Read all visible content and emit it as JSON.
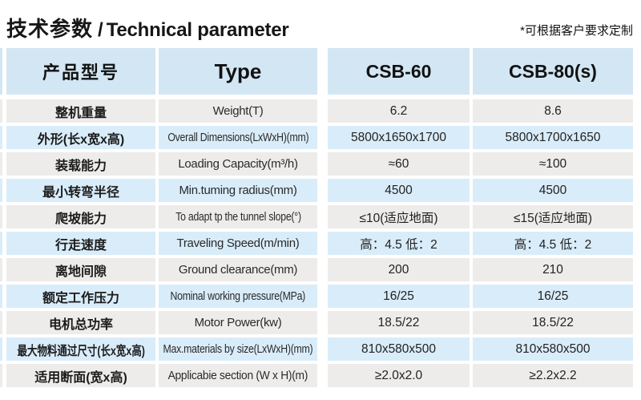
{
  "header": {
    "title_zh": "技术参数",
    "title_sep": "/",
    "title_en": "Technical parameter",
    "note": "*可根据客户要求定制"
  },
  "table": {
    "header": {
      "zh": "产品型号",
      "type": "Type",
      "csb60": "CSB-60",
      "csb80": "CSB-80(s)"
    },
    "rows": [
      {
        "zh": "整机重量",
        "en": "Weight(T)",
        "v1": "6.2",
        "v2": "8.6"
      },
      {
        "zh": "外形(长x宽x高)",
        "en": "Overall Dimensions(LxWxH)(mm)",
        "v1": "5800x1650x1700",
        "v2": "5800x1700x1650"
      },
      {
        "zh": "装载能力",
        "en": "Loading Capacity(m³/h)",
        "v1": "≈60",
        "v2": "≈100"
      },
      {
        "zh": "最小转弯半径",
        "en": "Min.tuming radius(mm)",
        "v1": "4500",
        "v2": "4500"
      },
      {
        "zh": "爬坡能力",
        "en": "To adapt tp the tunnel slope(°)",
        "v1": "≤10(适应地面)",
        "v2": "≤15(适应地面)"
      },
      {
        "zh": "行走速度",
        "en": "Traveling Speed(m/min)",
        "v1": "高：4.5 低：2",
        "v2": "高：4.5 低：2"
      },
      {
        "zh": "离地间隙",
        "en": "Ground clearance(mm)",
        "v1": "200",
        "v2": "210"
      },
      {
        "zh": "额定工作压力",
        "en": "Nominal working pressure(MPa)",
        "v1": "16/25",
        "v2": "16/25"
      },
      {
        "zh": "电机总功率",
        "en": "Motor Power(kw)",
        "v1": "18.5/22",
        "v2": "18.5/22"
      },
      {
        "zh": "最大物料通过尺寸(长x宽x高)",
        "en": "Max.materials by size(LxWxH)(mm)",
        "v1": "810x580x500",
        "v2": "810x580x500"
      },
      {
        "zh": "适用断面(宽x高)",
        "en": "Applicabie section (W x H)(m)",
        "v1": "≥2.0x2.0",
        "v2": "≥2.2x2.2"
      }
    ]
  },
  "colors": {
    "header_bg": "#d3e6f4",
    "row_blue": "#d9ecf9",
    "row_gray": "#edecea",
    "text": "#222222"
  }
}
